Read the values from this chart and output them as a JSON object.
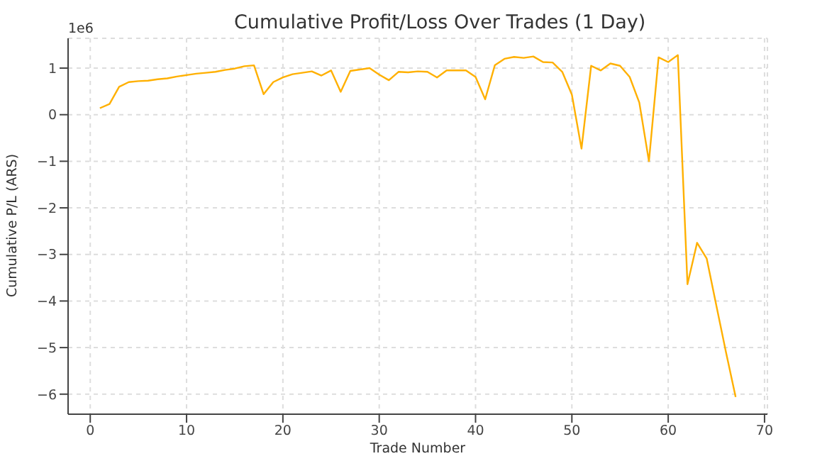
{
  "chart_data": {
    "type": "line",
    "title": "Cumulative Profit/Loss Over Trades (1 Day)",
    "xlabel": "Trade Number",
    "ylabel": "Cumulative P/L (ARS)",
    "annotations": [
      "1e6"
    ],
    "x": [
      1,
      2,
      3,
      4,
      5,
      6,
      7,
      8,
      9,
      10,
      11,
      12,
      13,
      14,
      15,
      16,
      17,
      18,
      19,
      20,
      21,
      22,
      23,
      24,
      25,
      26,
      27,
      28,
      29,
      30,
      31,
      32,
      33,
      34,
      35,
      36,
      37,
      38,
      39,
      40,
      41,
      42,
      43,
      44,
      45,
      46,
      47,
      48,
      49,
      50,
      51,
      52,
      53,
      54,
      55,
      56,
      57,
      58,
      59,
      60,
      61,
      62,
      63,
      64,
      65,
      66,
      67
    ],
    "series": [
      {
        "color": "#ffb000",
        "values": [
          0.14,
          0.23,
          0.6,
          0.7,
          0.72,
          0.73,
          0.76,
          0.78,
          0.82,
          0.85,
          0.88,
          0.9,
          0.92,
          0.96,
          0.99,
          1.04,
          1.06,
          0.44,
          0.7,
          0.8,
          0.87,
          0.9,
          0.93,
          0.84,
          0.95,
          0.49,
          0.94,
          0.97,
          1.0,
          0.86,
          0.74,
          0.92,
          0.91,
          0.93,
          0.92,
          0.8,
          0.95,
          0.95,
          0.95,
          0.81,
          0.33,
          1.06,
          1.2,
          1.24,
          1.22,
          1.25,
          1.13,
          1.12,
          0.92,
          0.43,
          -0.73,
          1.05,
          0.95,
          1.1,
          1.05,
          0.81,
          0.26,
          -1.0,
          1.23,
          1.13,
          1.28,
          -3.64,
          -2.75,
          -3.09,
          -4.1,
          -5.1,
          -6.06
        ]
      }
    ],
    "xlim": [
      -2.3,
      70.3
    ],
    "xticks": [
      0,
      10,
      20,
      30,
      40,
      50,
      60,
      70
    ],
    "ylim": [
      -6.43,
      1.64
    ],
    "yticks": [
      -6,
      -5,
      -4,
      -3,
      -2,
      -1,
      0,
      1
    ],
    "grid": true,
    "marker": "none",
    "line_style": "solid"
  }
}
